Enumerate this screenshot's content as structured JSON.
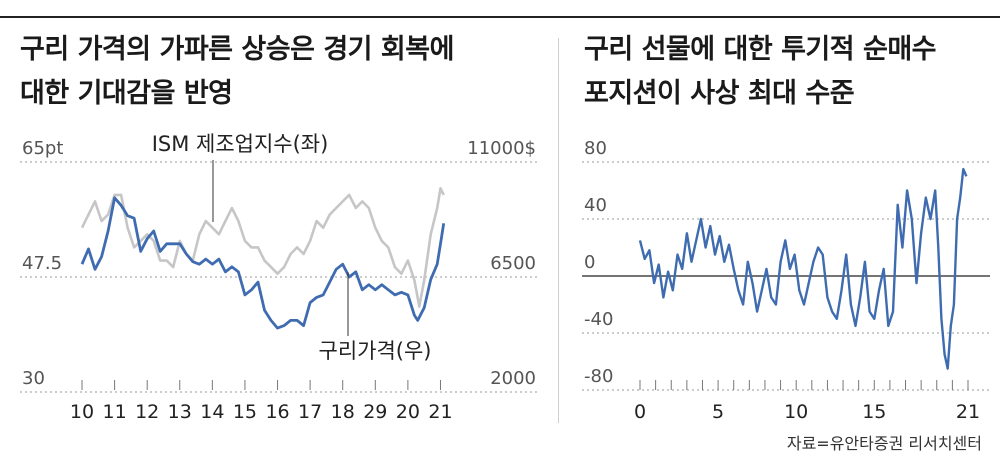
{
  "left_title": [
    "구리 가격의 가파른 상승은 경기 회복에",
    "대한 기대감을 반영"
  ],
  "right_title": [
    "구리 선물에 대한 투기적 순매수",
    "포지션이 사상 최대 수준"
  ],
  "source": "자료=유안타증권 리서치센터",
  "colors": {
    "ism": "#c6c6c6",
    "copper": "#3f6cb0",
    "positions": "#3f6cb0",
    "grid": "#9a9a9a",
    "axis_text": "#555555"
  },
  "chart_data": [
    {
      "type": "line",
      "left_axis": {
        "ticks": [
          "30",
          "47.5",
          "65pt"
        ],
        "values": [
          30,
          47.5,
          65
        ],
        "range": [
          30,
          65
        ]
      },
      "right_axis": {
        "ticks": [
          "2000",
          "6500",
          "11000$"
        ],
        "values": [
          2000,
          6500,
          11000
        ],
        "range": [
          2000,
          11000
        ]
      },
      "x_labels": [
        "10",
        "11",
        "12",
        "13",
        "14",
        "15",
        "16",
        "17",
        "18",
        "29",
        "20",
        "21"
      ],
      "x_range": [
        2010,
        2021.2
      ],
      "annotations": {
        "ism": "ISM 제조업지수(좌)",
        "copper": "구리가격(우)"
      },
      "series": [
        {
          "name": "ISM 제조업지수(좌)",
          "axis": "left",
          "x": [
            2010.0,
            2010.2,
            2010.4,
            2010.6,
            2010.8,
            2011.0,
            2011.2,
            2011.4,
            2011.6,
            2011.8,
            2012.0,
            2012.2,
            2012.4,
            2012.6,
            2012.8,
            2013.0,
            2013.2,
            2013.4,
            2013.6,
            2013.8,
            2014.0,
            2014.2,
            2014.4,
            2014.6,
            2014.8,
            2015.0,
            2015.2,
            2015.4,
            2015.6,
            2015.8,
            2016.0,
            2016.2,
            2016.4,
            2016.6,
            2016.8,
            2017.0,
            2017.2,
            2017.4,
            2017.6,
            2017.8,
            2018.0,
            2018.2,
            2018.4,
            2018.6,
            2018.8,
            2019.0,
            2019.2,
            2019.4,
            2019.6,
            2019.8,
            2020.0,
            2020.2,
            2020.35,
            2020.5,
            2020.7,
            2020.9,
            2021.0,
            2021.1
          ],
          "values": [
            55,
            57,
            59,
            56,
            57,
            60,
            60,
            55,
            52,
            53,
            54,
            53,
            50,
            50,
            49,
            53,
            51,
            50,
            54,
            56,
            55,
            54,
            56,
            58,
            56,
            53,
            52,
            52,
            50,
            49,
            48,
            49,
            51,
            52,
            51,
            53,
            56,
            55,
            57,
            58,
            59,
            60,
            58,
            59,
            58,
            55,
            53,
            52,
            49,
            48,
            50,
            47,
            43,
            47,
            54,
            58,
            61,
            60
          ]
        },
        {
          "name": "구리가격(우)",
          "axis": "right",
          "x": [
            2010.0,
            2010.2,
            2010.4,
            2010.6,
            2010.8,
            2011.0,
            2011.2,
            2011.4,
            2011.6,
            2011.8,
            2012.0,
            2012.2,
            2012.4,
            2012.6,
            2012.8,
            2013.0,
            2013.2,
            2013.4,
            2013.6,
            2013.8,
            2014.0,
            2014.2,
            2014.4,
            2014.6,
            2014.8,
            2015.0,
            2015.2,
            2015.4,
            2015.6,
            2015.8,
            2016.0,
            2016.2,
            2016.4,
            2016.6,
            2016.8,
            2017.0,
            2017.2,
            2017.4,
            2017.6,
            2017.8,
            2018.0,
            2018.2,
            2018.4,
            2018.6,
            2018.8,
            2019.0,
            2019.2,
            2019.4,
            2019.6,
            2019.8,
            2020.0,
            2020.2,
            2020.3,
            2020.5,
            2020.7,
            2020.9,
            2021.0,
            2021.1
          ],
          "values": [
            7000,
            7600,
            6800,
            7300,
            8300,
            9600,
            9300,
            8900,
            8800,
            7500,
            8000,
            8300,
            7500,
            7800,
            7800,
            7800,
            7400,
            7100,
            7000,
            7200,
            7000,
            7200,
            6700,
            6900,
            6700,
            5800,
            6000,
            6300,
            5200,
            4800,
            4500,
            4600,
            4800,
            4800,
            4600,
            5500,
            5700,
            5800,
            6300,
            6800,
            7000,
            6500,
            6700,
            6000,
            6200,
            6000,
            6200,
            6000,
            5800,
            5900,
            5800,
            5000,
            4800,
            5300,
            6400,
            7000,
            7800,
            8600
          ]
        }
      ]
    },
    {
      "type": "line",
      "y_axis": {
        "ticks": [
          "-80",
          "-40",
          "0",
          "40",
          "80"
        ],
        "values": [
          -80,
          -40,
          0,
          40,
          80
        ],
        "range": [
          -80,
          80
        ]
      },
      "x_labels": [
        "0",
        "5",
        "10",
        "15",
        "21"
      ],
      "x_label_values": [
        0,
        5,
        10,
        15,
        21
      ],
      "x_range": [
        0,
        21
      ],
      "series": [
        {
          "name": "",
          "color": "#3f6cb0",
          "x": [
            0,
            0.3,
            0.6,
            0.9,
            1.2,
            1.5,
            1.8,
            2.1,
            2.4,
            2.7,
            3.0,
            3.3,
            3.6,
            3.9,
            4.2,
            4.5,
            4.8,
            5.1,
            5.4,
            5.7,
            6.0,
            6.3,
            6.6,
            6.9,
            7.2,
            7.5,
            7.8,
            8.1,
            8.4,
            8.7,
            9.0,
            9.3,
            9.6,
            9.9,
            10.2,
            10.5,
            10.8,
            11.1,
            11.4,
            11.7,
            12.0,
            12.3,
            12.6,
            12.9,
            13.2,
            13.5,
            13.8,
            14.1,
            14.4,
            14.7,
            15.0,
            15.3,
            15.6,
            15.9,
            16.2,
            16.5,
            16.8,
            17.1,
            17.4,
            17.7,
            18.0,
            18.3,
            18.6,
            18.9,
            19.1,
            19.3,
            19.5,
            19.7,
            19.9,
            20.1,
            20.3,
            20.5,
            20.7,
            20.9
          ],
          "values": [
            25,
            12,
            18,
            -5,
            8,
            -15,
            3,
            -10,
            15,
            5,
            30,
            10,
            25,
            40,
            20,
            35,
            15,
            28,
            10,
            22,
            5,
            -10,
            -20,
            10,
            -5,
            -25,
            -10,
            5,
            -15,
            -20,
            10,
            25,
            5,
            15,
            -10,
            -20,
            -5,
            10,
            20,
            15,
            -15,
            -25,
            -30,
            -10,
            15,
            -20,
            -35,
            -15,
            10,
            -25,
            -30,
            -10,
            5,
            -35,
            -25,
            50,
            20,
            60,
            40,
            -5,
            30,
            55,
            40,
            60,
            20,
            -30,
            -55,
            -65,
            -35,
            -20,
            40,
            55,
            75,
            70
          ]
        }
      ]
    }
  ]
}
